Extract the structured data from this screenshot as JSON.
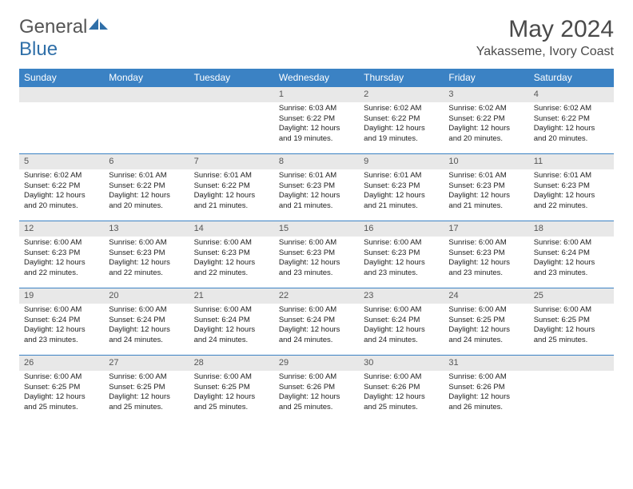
{
  "logo": {
    "text1": "General",
    "text2": "Blue"
  },
  "header": {
    "month": "May 2024",
    "location": "Yakasseme, Ivory Coast"
  },
  "colors": {
    "header_bg": "#3b82c4",
    "header_text": "#ffffff",
    "daynum_bg": "#e8e8e8",
    "border": "#3b82c4",
    "logo_blue": "#2f6fa8"
  },
  "daynames": [
    "Sunday",
    "Monday",
    "Tuesday",
    "Wednesday",
    "Thursday",
    "Friday",
    "Saturday"
  ],
  "weeks": [
    [
      null,
      null,
      null,
      {
        "n": "1",
        "sr": "6:03 AM",
        "ss": "6:22 PM",
        "dl": "12 hours and 19 minutes."
      },
      {
        "n": "2",
        "sr": "6:02 AM",
        "ss": "6:22 PM",
        "dl": "12 hours and 19 minutes."
      },
      {
        "n": "3",
        "sr": "6:02 AM",
        "ss": "6:22 PM",
        "dl": "12 hours and 20 minutes."
      },
      {
        "n": "4",
        "sr": "6:02 AM",
        "ss": "6:22 PM",
        "dl": "12 hours and 20 minutes."
      }
    ],
    [
      {
        "n": "5",
        "sr": "6:02 AM",
        "ss": "6:22 PM",
        "dl": "12 hours and 20 minutes."
      },
      {
        "n": "6",
        "sr": "6:01 AM",
        "ss": "6:22 PM",
        "dl": "12 hours and 20 minutes."
      },
      {
        "n": "7",
        "sr": "6:01 AM",
        "ss": "6:22 PM",
        "dl": "12 hours and 21 minutes."
      },
      {
        "n": "8",
        "sr": "6:01 AM",
        "ss": "6:23 PM",
        "dl": "12 hours and 21 minutes."
      },
      {
        "n": "9",
        "sr": "6:01 AM",
        "ss": "6:23 PM",
        "dl": "12 hours and 21 minutes."
      },
      {
        "n": "10",
        "sr": "6:01 AM",
        "ss": "6:23 PM",
        "dl": "12 hours and 21 minutes."
      },
      {
        "n": "11",
        "sr": "6:01 AM",
        "ss": "6:23 PM",
        "dl": "12 hours and 22 minutes."
      }
    ],
    [
      {
        "n": "12",
        "sr": "6:00 AM",
        "ss": "6:23 PM",
        "dl": "12 hours and 22 minutes."
      },
      {
        "n": "13",
        "sr": "6:00 AM",
        "ss": "6:23 PM",
        "dl": "12 hours and 22 minutes."
      },
      {
        "n": "14",
        "sr": "6:00 AM",
        "ss": "6:23 PM",
        "dl": "12 hours and 22 minutes."
      },
      {
        "n": "15",
        "sr": "6:00 AM",
        "ss": "6:23 PM",
        "dl": "12 hours and 23 minutes."
      },
      {
        "n": "16",
        "sr": "6:00 AM",
        "ss": "6:23 PM",
        "dl": "12 hours and 23 minutes."
      },
      {
        "n": "17",
        "sr": "6:00 AM",
        "ss": "6:23 PM",
        "dl": "12 hours and 23 minutes."
      },
      {
        "n": "18",
        "sr": "6:00 AM",
        "ss": "6:24 PM",
        "dl": "12 hours and 23 minutes."
      }
    ],
    [
      {
        "n": "19",
        "sr": "6:00 AM",
        "ss": "6:24 PM",
        "dl": "12 hours and 23 minutes."
      },
      {
        "n": "20",
        "sr": "6:00 AM",
        "ss": "6:24 PM",
        "dl": "12 hours and 24 minutes."
      },
      {
        "n": "21",
        "sr": "6:00 AM",
        "ss": "6:24 PM",
        "dl": "12 hours and 24 minutes."
      },
      {
        "n": "22",
        "sr": "6:00 AM",
        "ss": "6:24 PM",
        "dl": "12 hours and 24 minutes."
      },
      {
        "n": "23",
        "sr": "6:00 AM",
        "ss": "6:24 PM",
        "dl": "12 hours and 24 minutes."
      },
      {
        "n": "24",
        "sr": "6:00 AM",
        "ss": "6:25 PM",
        "dl": "12 hours and 24 minutes."
      },
      {
        "n": "25",
        "sr": "6:00 AM",
        "ss": "6:25 PM",
        "dl": "12 hours and 25 minutes."
      }
    ],
    [
      {
        "n": "26",
        "sr": "6:00 AM",
        "ss": "6:25 PM",
        "dl": "12 hours and 25 minutes."
      },
      {
        "n": "27",
        "sr": "6:00 AM",
        "ss": "6:25 PM",
        "dl": "12 hours and 25 minutes."
      },
      {
        "n": "28",
        "sr": "6:00 AM",
        "ss": "6:25 PM",
        "dl": "12 hours and 25 minutes."
      },
      {
        "n": "29",
        "sr": "6:00 AM",
        "ss": "6:26 PM",
        "dl": "12 hours and 25 minutes."
      },
      {
        "n": "30",
        "sr": "6:00 AM",
        "ss": "6:26 PM",
        "dl": "12 hours and 25 minutes."
      },
      {
        "n": "31",
        "sr": "6:00 AM",
        "ss": "6:26 PM",
        "dl": "12 hours and 26 minutes."
      },
      null
    ]
  ],
  "labels": {
    "sunrise": "Sunrise:",
    "sunset": "Sunset:",
    "daylight": "Daylight:"
  }
}
